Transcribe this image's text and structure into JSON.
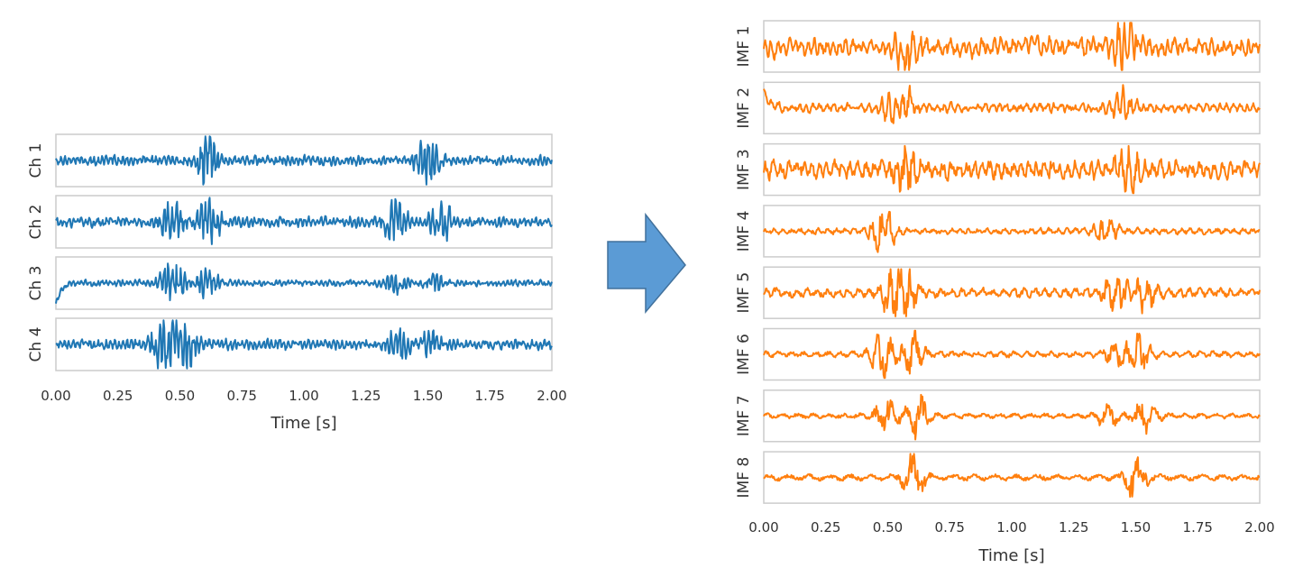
{
  "chart_data": [
    {
      "type": "line",
      "xlabel": "Time [s]",
      "xlim": [
        0,
        2
      ],
      "xticks": [
        "0.00",
        "0.25",
        "0.50",
        "0.75",
        "1.00",
        "1.25",
        "1.50",
        "1.75",
        "2.00"
      ],
      "color": "#1f77b4",
      "series": [
        {
          "name": "Ch 1",
          "bursts": [
            [
              0.61,
              1.0
            ],
            [
              1.5,
              0.95
            ]
          ],
          "base": 0.18
        },
        {
          "name": "Ch 2",
          "bursts": [
            [
              0.47,
              0.8
            ],
            [
              0.62,
              0.75
            ],
            [
              1.37,
              0.7
            ],
            [
              1.55,
              0.65
            ]
          ],
          "base": 0.2
        },
        {
          "name": "Ch 3",
          "bursts": [
            [
              0.47,
              0.9
            ],
            [
              0.61,
              0.5
            ],
            [
              1.37,
              0.35
            ],
            [
              1.52,
              0.3
            ]
          ],
          "base": 0.12,
          "onset": 0.9
        },
        {
          "name": "Ch 4",
          "bursts": [
            [
              0.43,
              0.8
            ],
            [
              0.52,
              0.9
            ],
            [
              1.38,
              0.6
            ],
            [
              1.52,
              0.55
            ]
          ],
          "base": 0.2
        }
      ]
    },
    {
      "type": "line",
      "xlabel": "Time [s]",
      "xlim": [
        0,
        2
      ],
      "xticks": [
        "0.00",
        "0.25",
        "0.50",
        "0.75",
        "1.00",
        "1.25",
        "1.50",
        "1.75",
        "2.00"
      ],
      "color": "#ff7f0e",
      "series": [
        {
          "name": "IMF 1",
          "bursts": [
            [
              0.58,
              0.9
            ],
            [
              1.46,
              0.85
            ]
          ],
          "base": 0.35
        },
        {
          "name": "IMF 2",
          "bursts": [
            [
              0.5,
              0.5
            ],
            [
              0.58,
              0.5
            ],
            [
              1.45,
              0.55
            ]
          ],
          "base": 0.18,
          "onset": 0.9
        },
        {
          "name": "IMF 3",
          "bursts": [
            [
              0.57,
              0.9
            ],
            [
              1.47,
              0.8
            ]
          ],
          "base": 0.35
        },
        {
          "name": "IMF 4",
          "bursts": [
            [
              0.48,
              0.95
            ],
            [
              1.38,
              0.6
            ]
          ],
          "base": 0.12
        },
        {
          "name": "IMF 5",
          "bursts": [
            [
              0.52,
              0.9
            ],
            [
              0.58,
              0.8
            ],
            [
              1.42,
              0.7
            ],
            [
              1.54,
              0.75
            ]
          ],
          "base": 0.18
        },
        {
          "name": "IMF 6",
          "bursts": [
            [
              0.48,
              0.9
            ],
            [
              0.6,
              0.85
            ],
            [
              1.42,
              0.45
            ],
            [
              1.51,
              0.75
            ]
          ],
          "base": 0.12
        },
        {
          "name": "IMF 7",
          "bursts": [
            [
              0.49,
              0.7
            ],
            [
              0.62,
              0.95
            ],
            [
              1.39,
              0.5
            ],
            [
              1.54,
              0.75
            ]
          ],
          "base": 0.1
        },
        {
          "name": "IMF 8",
          "bursts": [
            [
              0.6,
              0.95
            ],
            [
              1.5,
              0.85
            ]
          ],
          "base": 0.12
        }
      ]
    }
  ],
  "arrow": {
    "color": "#5b9bd5",
    "label": "arrow-icon"
  }
}
